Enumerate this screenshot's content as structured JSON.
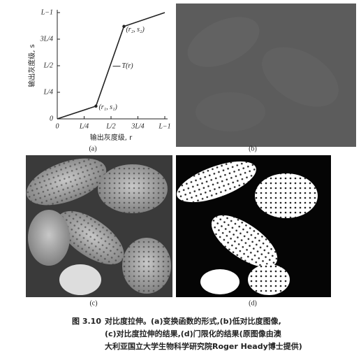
{
  "chart_data": {
    "type": "line",
    "x": [
      0,
      0.36,
      0.62,
      1
    ],
    "values": [
      0,
      0.12,
      0.87,
      1
    ],
    "color": "#222222",
    "xlim": [
      0,
      1
    ],
    "ylim": [
      0,
      1
    ],
    "xticks": [
      0,
      {
        "value": 0.25,
        "label": "L/4"
      },
      {
        "value": 0.5,
        "label": "L/2"
      },
      {
        "value": 0.75,
        "label": "3L/4"
      },
      {
        "value": 1,
        "label": "L−1"
      }
    ],
    "yticks": [
      0,
      {
        "value": 0.25,
        "label": "L/4"
      },
      {
        "value": 0.5,
        "label": "L/2"
      },
      {
        "value": 0.75,
        "label": "3L/4"
      },
      {
        "value": 1,
        "label": "L−1"
      }
    ],
    "xlabel": "输出灰度级, r",
    "ylabel": "输出灰度级, s",
    "annotations": [
      "(r₁, s₁)",
      "(r₂, s₂)",
      "T(r)"
    ]
  },
  "panels": [
    "(a)",
    "(b)",
    "(c)",
    "(d)"
  ],
  "caption": {
    "number": "图 3.10",
    "lines": [
      "对比度拉伸。(a)变换函数的形式,(b)低对比度图像,",
      "(c)对比度拉伸的结果,(d)门限化的结果(原图像由澳",
      "大利亚国立大学生物科学研究院Roger Heady博士提供)"
    ]
  }
}
